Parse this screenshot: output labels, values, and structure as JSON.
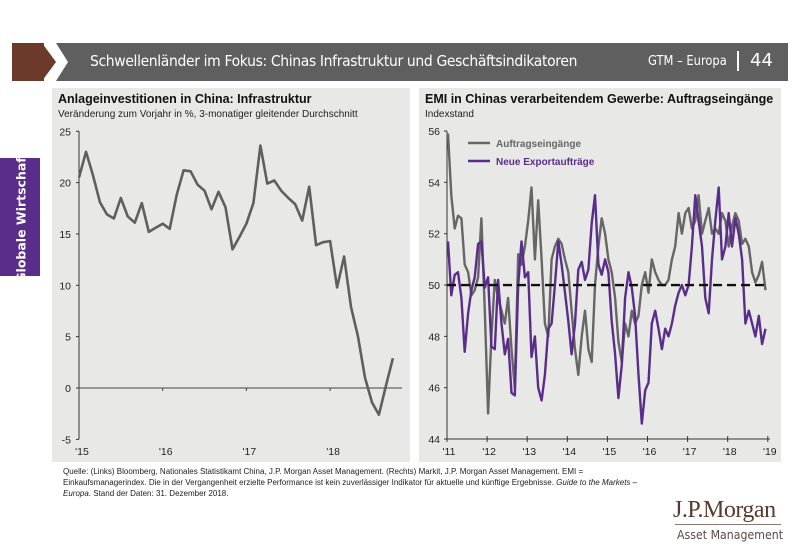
{
  "header": {
    "title": "Schwellenländer im Fokus: Chinas Infrastruktur und Geschäftsindikatoren",
    "gtm": "GTM – Europa",
    "page": "44"
  },
  "sidebar": {
    "label": "Globale Wirtschaft",
    "color": "#5b2d8a"
  },
  "footer": {
    "source_1": "Quelle: (Links) Bloomberg, Nationales Statistikamt China, J.P. Morgan Asset Management. (Rechts) Markit, J.P. Morgan Asset Management. EMI =",
    "source_2": "Einkaufsmanagerindex. Die in der Vergangenheit erzielte Performance ist kein zuverlässiger Indikator für aktuelle und künftige Ergebnisse.",
    "source_italic_1": "Guide to the Markets –",
    "source_italic_2": "Europa",
    "source_3": ". Stand der Daten: 31. Dezember 2018."
  },
  "logo": {
    "name": "J.P.Morgan",
    "tagline": "Asset Management"
  },
  "chart_data": [
    {
      "type": "line",
      "title": "Anlageinvestitionen in China: Infrastruktur",
      "subtitle": "Veränderung zum Vorjahr in %, 3-monatiger gleitender Durchschnitt",
      "xlabel": "",
      "ylabel": "",
      "ylim": [
        -5,
        25
      ],
      "yticks": [
        25,
        20,
        15,
        10,
        5,
        0,
        -5
      ],
      "xticks": [
        "'15",
        "'16",
        "'17",
        "'18"
      ],
      "x_start": "2015-01",
      "grid": false,
      "color": "#5f5f5f",
      "series": [
        {
          "name": "Infrastruktur",
          "values": [
            20.5,
            23.0,
            20.7,
            18.1,
            16.9,
            16.5,
            18.5,
            16.7,
            16.1,
            18.0,
            15.2,
            15.6,
            16.0,
            15.5,
            18.8,
            21.2,
            21.1,
            19.8,
            19.2,
            17.4,
            19.1,
            17.6,
            13.5,
            14.7,
            16.0,
            18.0,
            23.6,
            19.9,
            20.2,
            19.2,
            18.5,
            17.9,
            16.3,
            19.6,
            13.9,
            14.2,
            14.3,
            9.8,
            12.8,
            7.9,
            5.0,
            1.0,
            -1.4,
            -2.6,
            0.2,
            2.9
          ]
        }
      ]
    },
    {
      "type": "line",
      "title": "EMI in Chinas verarbeitendem Gewerbe: Auftragseingänge",
      "subtitle": "Indexstand",
      "xlabel": "",
      "ylabel": "",
      "ylim": [
        44,
        56
      ],
      "yticks": [
        56,
        54,
        52,
        50,
        48,
        46,
        44
      ],
      "xticks": [
        "'11",
        "'12",
        "'13",
        "'14",
        "'15",
        "'16",
        "'17",
        "'18",
        "'19"
      ],
      "x_start": "2011-01",
      "grid": false,
      "reference_line": 50,
      "legend": "top-left",
      "series": [
        {
          "name": "Auftragseingänge",
          "color": "#666666",
          "values": [
            55.9,
            53.5,
            52.2,
            52.7,
            52.6,
            50.8,
            50.5,
            49.6,
            49.8,
            50.3,
            52.6,
            49.0,
            45.0,
            48.0,
            50.2,
            49.5,
            49.0,
            48.5,
            49.5,
            47.5,
            46.0,
            51.2,
            50.8,
            51.5,
            52.5,
            53.8,
            51.0,
            53.3,
            51.0,
            48.5,
            48.0,
            51.0,
            51.5,
            51.8,
            51.6,
            51.0,
            50.5,
            49.0,
            47.5,
            46.5,
            48.0,
            49.0,
            47.5,
            47.0,
            50.0,
            51.5,
            52.6,
            52.0,
            51.0,
            50.5,
            49.5,
            47.8,
            47.0,
            48.5,
            48.0,
            49.0,
            48.5,
            48.8,
            50.0,
            50.5,
            49.7,
            51.0,
            50.5,
            50.2,
            50.0,
            50.0,
            50.2,
            51.0,
            51.5,
            52.8,
            52.0,
            52.8,
            53.0,
            52.2,
            52.5,
            53.5,
            52.0,
            52.5,
            53.0,
            52.0,
            52.2,
            52.0,
            52.8,
            52.5,
            51.5,
            52.3,
            52.8,
            52.5,
            51.6,
            51.8,
            51.5,
            50.5,
            50.1,
            50.4,
            50.9,
            49.8
          ]
        },
        {
          "name": "Neue Exportaufträge",
          "color": "#5b2d8a",
          "values": [
            51.7,
            49.6,
            50.4,
            50.5,
            49.5,
            47.4,
            48.9,
            49.8,
            50.3,
            51.6,
            51.7,
            49.9,
            50.3,
            47.6,
            47.5,
            50.2,
            48.5,
            47.3,
            47.9,
            45.8,
            45.7,
            50.0,
            51.7,
            50.3,
            50.5,
            47.2,
            48.0,
            46.0,
            45.5,
            46.5,
            48.3,
            48.5,
            50.0,
            51.7,
            50.8,
            49.7,
            48.6,
            47.3,
            48.5,
            50.6,
            50.9,
            50.2,
            50.6,
            52.4,
            53.5,
            50.8,
            50.4,
            51.0,
            50.5,
            48.6,
            47.3,
            45.6,
            46.9,
            49.5,
            50.5,
            49.9,
            48.8,
            46.5,
            44.6,
            45.9,
            46.2,
            48.5,
            49.0,
            48.3,
            47.5,
            48.3,
            48.0,
            48.5,
            49.2,
            49.7,
            50.0,
            49.6,
            50.0,
            51.5,
            53.5,
            52.5,
            51.5,
            49.5,
            48.9,
            51.0,
            52.5,
            53.8,
            51.0,
            51.5,
            52.8,
            51.5,
            52.6,
            52.0,
            51.0,
            48.5,
            49.0,
            48.5,
            48.0,
            48.8,
            47.7,
            48.3
          ]
        }
      ]
    }
  ]
}
